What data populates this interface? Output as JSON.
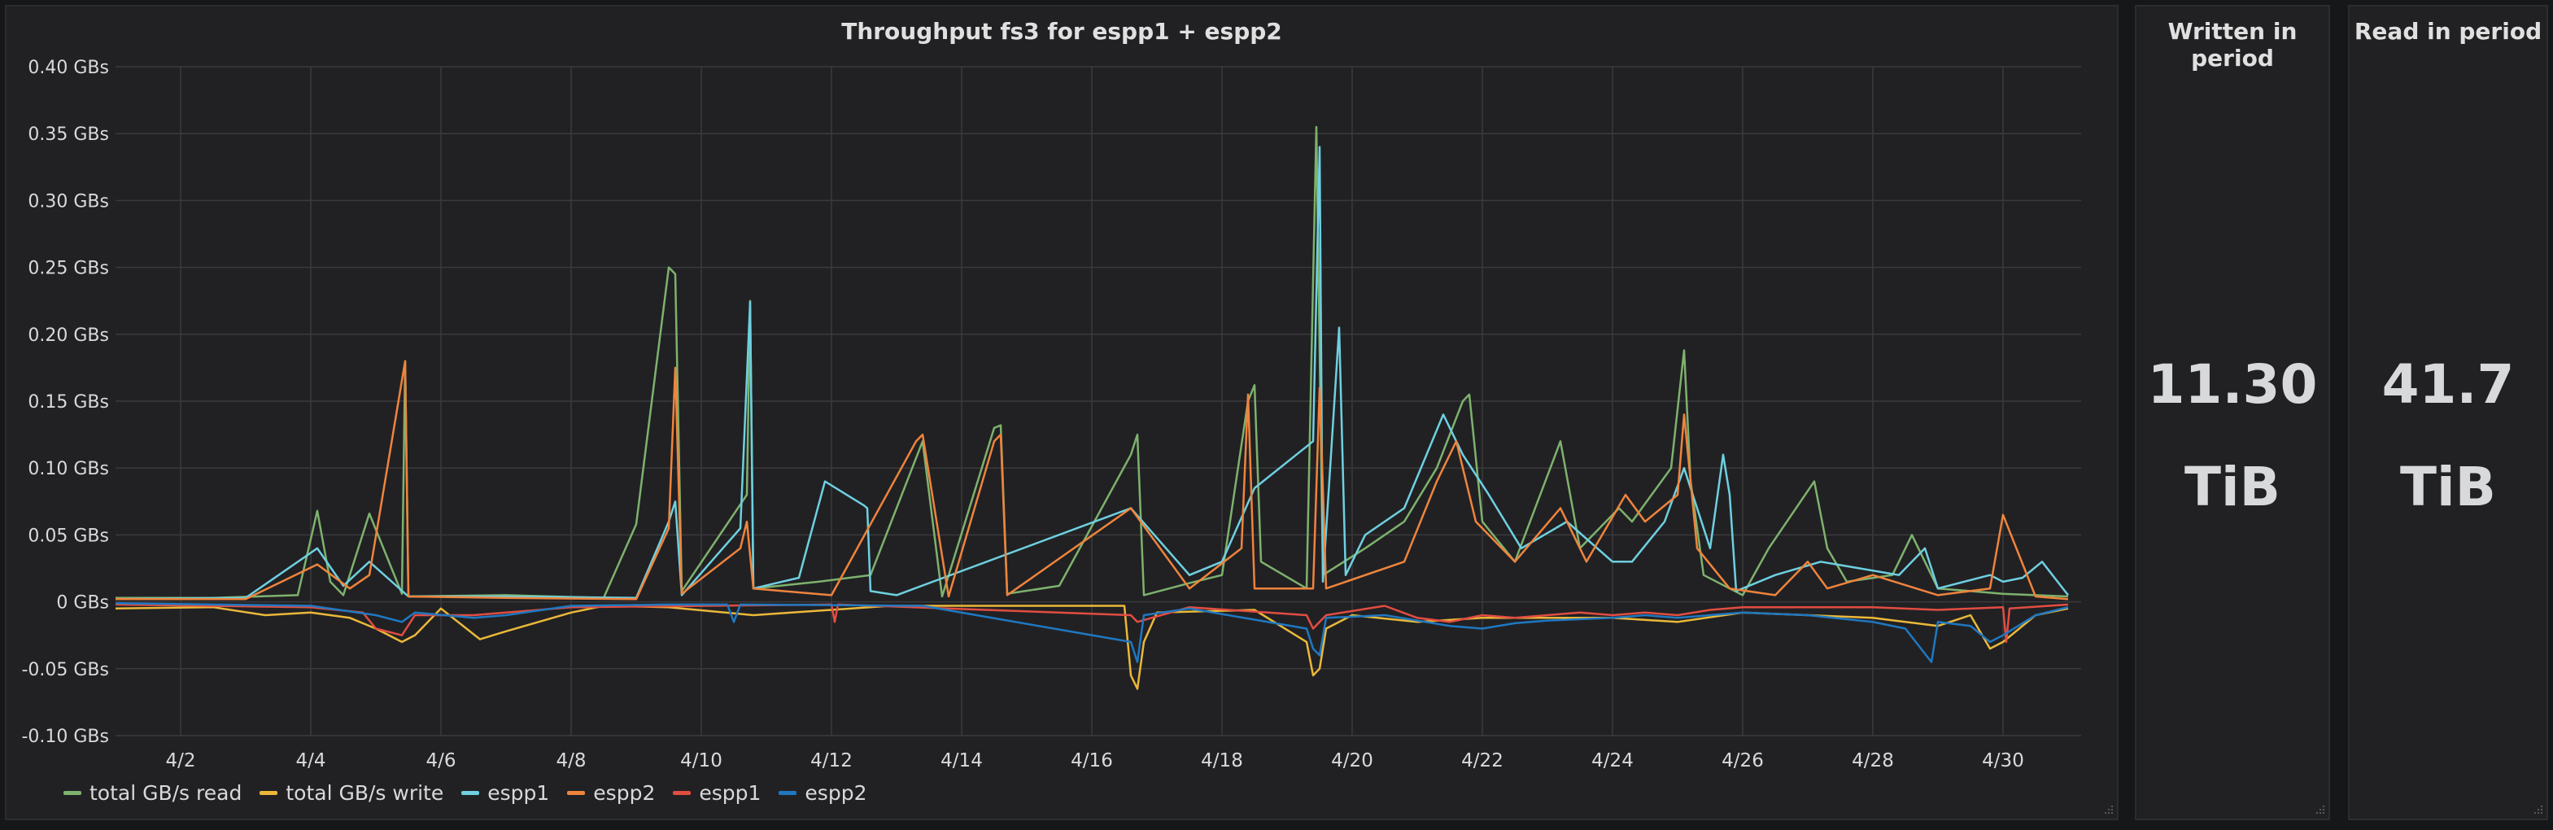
{
  "graph_panel": {
    "title": "Throughput fs3 for espp1 + espp2"
  },
  "written_panel": {
    "title": "Written in period",
    "value": "11.30",
    "unit": "TiB"
  },
  "read_panel": {
    "title": "Read in period",
    "value": "41.7",
    "unit": "TiB"
  },
  "colors": {
    "total_read": "#7eb26d",
    "total_write": "#eab839",
    "espp1_read": "#6ed0e0",
    "espp2_read": "#ef843c",
    "espp1_write": "#e24d42",
    "espp2_write": "#1f78c1"
  },
  "chart_data": {
    "type": "line",
    "title": "Throughput fs3 for espp1 + espp2",
    "xlabel": "",
    "ylabel": "",
    "ylim": [
      -0.1,
      0.4
    ],
    "y_ticks": [
      -0.1,
      -0.05,
      0,
      0.05,
      0.1,
      0.15,
      0.2,
      0.25,
      0.3,
      0.35,
      0.4
    ],
    "y_tick_labels": [
      "-0.10 GBs",
      "-0.05 GBs",
      "0 GBs",
      "0.05 GBs",
      "0.10 GBs",
      "0.15 GBs",
      "0.20 GBs",
      "0.25 GBs",
      "0.30 GBs",
      "0.35 GBs",
      "0.40 GBs"
    ],
    "xlim": [
      1,
      31.2
    ],
    "x_ticks": [
      2,
      4,
      6,
      8,
      10,
      12,
      14,
      16,
      18,
      20,
      22,
      24,
      26,
      28,
      30
    ],
    "x_tick_labels": [
      "4/2",
      "4/4",
      "4/6",
      "4/8",
      "4/10",
      "4/12",
      "4/14",
      "4/16",
      "4/18",
      "4/20",
      "4/22",
      "4/24",
      "4/26",
      "4/28",
      "4/30"
    ],
    "grid": true,
    "legend_position": "bottom-left",
    "series": [
      {
        "name": "total GB/s read",
        "x": [
          1,
          2.5,
          3.8,
          4.1,
          4.3,
          4.5,
          4.9,
          5.4,
          5.45,
          5.5,
          7,
          8.5,
          9.0,
          9.5,
          9.6,
          9.7,
          10.7,
          10.75,
          10.8,
          11.8,
          12.6,
          13.4,
          13.7,
          14.5,
          14.6,
          14.7,
          15.5,
          16.6,
          16.7,
          16.8,
          17.5,
          18.0,
          18.4,
          18.5,
          18.6,
          19.3,
          19.45,
          19.55,
          20.2,
          20.8,
          21.3,
          21.7,
          21.8,
          22.0,
          22.5,
          23.2,
          23.5,
          24.1,
          24.3,
          24.9,
          25.1,
          25.2,
          25.4,
          25.8,
          26.0,
          26.4,
          27.1,
          27.3,
          27.6,
          28.3,
          28.6,
          29.0,
          29.5,
          30.0,
          30.5,
          31.0
        ],
        "values": [
          0.003,
          0.003,
          0.005,
          0.068,
          0.015,
          0.005,
          0.066,
          0.006,
          0.18,
          0.004,
          0.005,
          0.003,
          0.058,
          0.25,
          0.245,
          0.008,
          0.08,
          0.225,
          0.01,
          0.015,
          0.02,
          0.12,
          0.004,
          0.13,
          0.132,
          0.006,
          0.012,
          0.11,
          0.125,
          0.005,
          0.014,
          0.02,
          0.15,
          0.162,
          0.03,
          0.01,
          0.355,
          0.02,
          0.04,
          0.06,
          0.1,
          0.15,
          0.155,
          0.06,
          0.03,
          0.12,
          0.04,
          0.07,
          0.06,
          0.1,
          0.188,
          0.09,
          0.02,
          0.01,
          0.005,
          0.04,
          0.09,
          0.04,
          0.015,
          0.02,
          0.05,
          0.01,
          0.008,
          0.006,
          0.005,
          0.004
        ]
      },
      {
        "name": "total GB/s write",
        "x": [
          1,
          2.5,
          3.3,
          4.0,
          4.6,
          5.0,
          5.4,
          5.6,
          6.0,
          6.6,
          7.0,
          7.5,
          8.0,
          8.5,
          9.5,
          10.8,
          12.9,
          16.5,
          16.6,
          16.7,
          16.8,
          17.0,
          18.5,
          19.3,
          19.4,
          19.5,
          19.6,
          20.0,
          21.0,
          22.0,
          23.0,
          24.0,
          25.0,
          26.0,
          27.0,
          28.0,
          28.5,
          29.0,
          29.5,
          29.8,
          30.0,
          30.5,
          31.0
        ],
        "values": [
          -0.005,
          -0.004,
          -0.01,
          -0.008,
          -0.012,
          -0.02,
          -0.03,
          -0.025,
          -0.005,
          -0.028,
          -0.022,
          -0.015,
          -0.008,
          -0.003,
          -0.004,
          -0.01,
          -0.003,
          -0.003,
          -0.055,
          -0.065,
          -0.03,
          -0.008,
          -0.006,
          -0.03,
          -0.055,
          -0.05,
          -0.02,
          -0.01,
          -0.015,
          -0.012,
          -0.012,
          -0.012,
          -0.015,
          -0.008,
          -0.01,
          -0.012,
          -0.015,
          -0.018,
          -0.01,
          -0.035,
          -0.03,
          -0.01,
          -0.005
        ]
      },
      {
        "name": "espp1",
        "x": [
          1,
          3.0,
          4.1,
          4.5,
          4.9,
          5.5,
          7.0,
          9.0,
          9.5,
          9.6,
          9.7,
          10.6,
          10.75,
          10.8,
          11.5,
          11.9,
          12.5,
          12.55,
          12.6,
          13.0,
          16.6,
          17.5,
          18.0,
          18.5,
          19.4,
          19.5,
          19.55,
          19.8,
          19.9,
          20.2,
          20.8,
          21.4,
          21.7,
          22.1,
          22.6,
          23.3,
          24.0,
          24.3,
          24.8,
          25.1,
          25.5,
          25.7,
          25.8,
          25.9,
          26.5,
          27.2,
          28.4,
          28.8,
          29.0,
          29.8,
          30.0,
          30.3,
          30.6,
          31.0
        ],
        "values": [
          0.002,
          0.003,
          0.04,
          0.012,
          0.03,
          0.004,
          0.004,
          0.003,
          0.06,
          0.075,
          0.005,
          0.055,
          0.224,
          0.01,
          0.018,
          0.09,
          0.072,
          0.07,
          0.008,
          0.005,
          0.07,
          0.02,
          0.03,
          0.085,
          0.12,
          0.34,
          0.015,
          0.205,
          0.02,
          0.05,
          0.07,
          0.14,
          0.11,
          0.08,
          0.04,
          0.06,
          0.03,
          0.03,
          0.06,
          0.1,
          0.04,
          0.11,
          0.08,
          0.008,
          0.02,
          0.03,
          0.02,
          0.04,
          0.01,
          0.02,
          0.015,
          0.018,
          0.03,
          0.005
        ]
      },
      {
        "name": "espp2",
        "x": [
          1,
          3.0,
          4.1,
          4.6,
          4.9,
          5.45,
          5.5,
          7.0,
          9.0,
          9.5,
          9.6,
          9.7,
          10.6,
          10.7,
          10.8,
          12.0,
          13.3,
          13.4,
          13.8,
          14.5,
          14.6,
          14.7,
          16.6,
          17.5,
          18.3,
          18.4,
          18.5,
          19.4,
          19.5,
          19.6,
          20.8,
          21.3,
          21.6,
          21.9,
          22.5,
          23.2,
          23.6,
          24.2,
          24.5,
          25.0,
          25.1,
          25.3,
          25.8,
          26.5,
          27.0,
          27.3,
          28.0,
          29.0,
          29.8,
          30.0,
          30.5,
          31.0
        ],
        "values": [
          0.002,
          0.002,
          0.028,
          0.01,
          0.02,
          0.18,
          0.004,
          0.003,
          0.002,
          0.055,
          0.175,
          0.006,
          0.04,
          0.06,
          0.01,
          0.005,
          0.12,
          0.125,
          0.004,
          0.12,
          0.125,
          0.005,
          0.07,
          0.01,
          0.04,
          0.155,
          0.01,
          0.01,
          0.16,
          0.01,
          0.03,
          0.09,
          0.12,
          0.06,
          0.03,
          0.07,
          0.03,
          0.08,
          0.06,
          0.08,
          0.14,
          0.04,
          0.01,
          0.005,
          0.03,
          0.01,
          0.02,
          0.005,
          0.01,
          0.065,
          0.004,
          0.002
        ]
      },
      {
        "name": "espp1",
        "x": [
          1,
          4.0,
          4.8,
          5.0,
          5.4,
          5.6,
          6.5,
          7.0,
          8.0,
          12.0,
          12.05,
          12.1,
          16.6,
          16.7,
          17.5,
          19.3,
          19.4,
          19.6,
          20.5,
          21.0,
          21.5,
          22.0,
          22.5,
          23.0,
          23.5,
          24.0,
          24.5,
          25.0,
          25.5,
          26.0,
          28.0,
          29.0,
          30.0,
          30.05,
          30.1,
          31.0
        ],
        "values": [
          -0.002,
          -0.004,
          -0.008,
          -0.02,
          -0.025,
          -0.01,
          -0.01,
          -0.008,
          -0.004,
          -0.002,
          -0.015,
          -0.002,
          -0.01,
          -0.015,
          -0.004,
          -0.01,
          -0.02,
          -0.01,
          -0.003,
          -0.012,
          -0.015,
          -0.01,
          -0.012,
          -0.01,
          -0.008,
          -0.01,
          -0.008,
          -0.01,
          -0.006,
          -0.004,
          -0.004,
          -0.006,
          -0.004,
          -0.03,
          -0.005,
          -0.002
        ]
      },
      {
        "name": "espp2",
        "x": [
          1,
          4.0,
          5.0,
          5.4,
          5.6,
          6.5,
          7.0,
          8.0,
          9.5,
          10.4,
          10.5,
          10.6,
          13.4,
          16.6,
          16.7,
          16.8,
          17.5,
          19.3,
          19.4,
          19.5,
          19.6,
          20.5,
          21.5,
          22.0,
          22.5,
          23.0,
          24.0,
          24.5,
          25.0,
          26.0,
          27.0,
          28.0,
          28.5,
          28.9,
          29.0,
          29.5,
          29.8,
          30.0,
          30.5,
          31.0
        ],
        "values": [
          -0.001,
          -0.003,
          -0.01,
          -0.015,
          -0.008,
          -0.012,
          -0.01,
          -0.003,
          -0.002,
          -0.002,
          -0.015,
          -0.002,
          -0.003,
          -0.03,
          -0.045,
          -0.01,
          -0.005,
          -0.02,
          -0.035,
          -0.04,
          -0.012,
          -0.01,
          -0.018,
          -0.02,
          -0.016,
          -0.014,
          -0.012,
          -0.01,
          -0.012,
          -0.008,
          -0.01,
          -0.015,
          -0.02,
          -0.045,
          -0.015,
          -0.018,
          -0.03,
          -0.025,
          -0.01,
          -0.004
        ]
      }
    ]
  }
}
